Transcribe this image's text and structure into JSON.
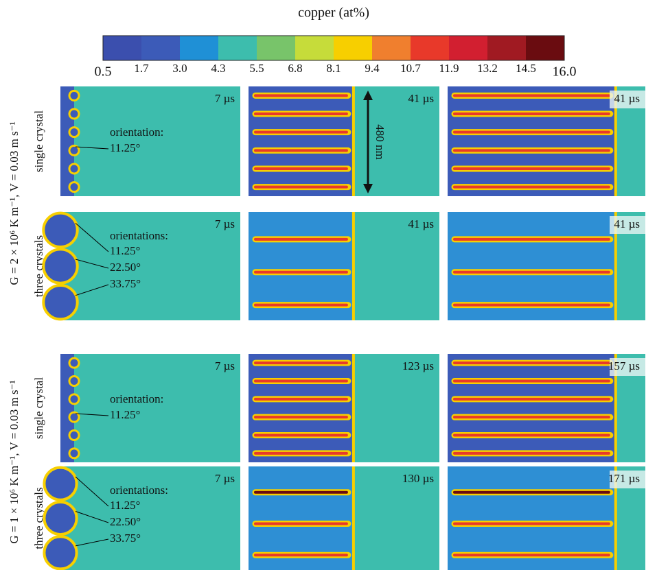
{
  "colorbar": {
    "title": "copper (at%)",
    "ticks": [
      "0.5",
      "1.7",
      "3.0",
      "4.3",
      "5.5",
      "6.8",
      "8.1",
      "9.4",
      "10.7",
      "11.9",
      "13.2",
      "14.5",
      "16.0"
    ],
    "colors": [
      "#3b4fae",
      "#3c5bb8",
      "#1f90d6",
      "#3dbdad",
      "#78c46a",
      "#c6dc3a",
      "#f7cf00",
      "#f07f2e",
      "#e8392a",
      "#d21f30",
      "#a01a22",
      "#6a0c10"
    ]
  },
  "scale_bar": "480 nm",
  "groups": [
    {
      "label": "G = 2 × 10⁶ K m⁻¹, V = 0.03 m s⁻¹",
      "rows": [
        {
          "label": "single crystal",
          "times": [
            "7 µs",
            "41 µs",
            "41 µs"
          ],
          "annotation": {
            "title": "orientation:",
            "angles": [
              "11.25°"
            ]
          }
        },
        {
          "label": "three crystals",
          "times": [
            "7 µs",
            "41 µs",
            "41 µs"
          ],
          "annotation": {
            "title": "orientations:",
            "angles": [
              "11.25°",
              "22.50°",
              "33.75°"
            ]
          }
        }
      ]
    },
    {
      "label": "G = 1 × 10⁶ K m⁻¹, V = 0.03 m s⁻¹",
      "rows": [
        {
          "label": "single crystal",
          "times": [
            "7 µs",
            "123 µs",
            "157 µs"
          ],
          "annotation": {
            "title": "orientation:",
            "angles": [
              "11.25°"
            ]
          }
        },
        {
          "label": "three crystals",
          "times": [
            "7 µs",
            "130 µs",
            "171 µs"
          ],
          "annotation": {
            "title": "orientations:",
            "angles": [
              "11.25°",
              "22.50°",
              "33.75°"
            ]
          }
        }
      ]
    }
  ]
}
